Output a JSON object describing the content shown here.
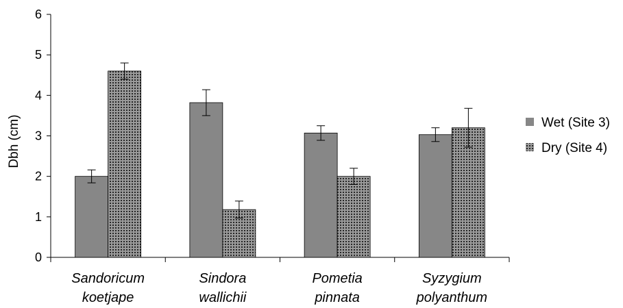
{
  "chart_data": {
    "type": "bar",
    "ylabel": "Dbh (cm)",
    "xlabel": "",
    "ylim": [
      0,
      6
    ],
    "yticks": [
      0,
      1,
      2,
      3,
      4,
      5,
      6
    ],
    "grid": false,
    "legend_position": "right",
    "categories": [
      [
        "Sandoricum",
        "koetjape"
      ],
      [
        "Sindora",
        "wallichii"
      ],
      [
        "Pometia",
        "pinnata"
      ],
      [
        "Syzygium",
        "polyanthum"
      ]
    ],
    "series": [
      {
        "name": "Wet (Site 3)",
        "pattern": "solid",
        "color": "#878787",
        "values": [
          2.0,
          3.82,
          3.07,
          3.03
        ],
        "errors": [
          0.16,
          0.32,
          0.18,
          0.17
        ]
      },
      {
        "name": "Dry (Site 4)",
        "pattern": "dotted",
        "color": "#9a9a9a",
        "values": [
          4.6,
          1.18,
          2.0,
          3.2
        ],
        "errors": [
          0.2,
          0.21,
          0.2,
          0.48
        ]
      }
    ]
  }
}
